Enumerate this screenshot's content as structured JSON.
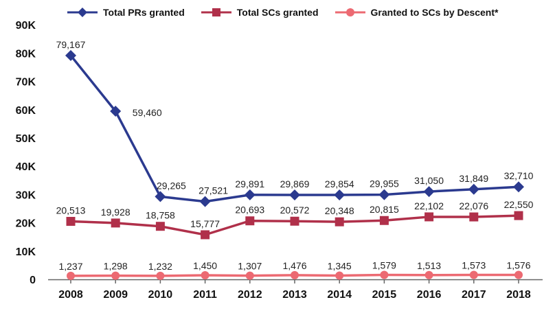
{
  "legend": {
    "pr": "Total PRs granted",
    "sc": "Total SCs granted",
    "descent": "Granted to SCs by Descent*"
  },
  "chart_data": {
    "type": "line",
    "title": "",
    "xlabel": "",
    "ylabel": "",
    "categories": [
      "2008",
      "2009",
      "2010",
      "2011",
      "2012",
      "2013",
      "2014",
      "2015",
      "2016",
      "2017",
      "2018"
    ],
    "ylim": [
      0,
      90000
    ],
    "yticks": [
      0,
      10000,
      20000,
      30000,
      40000,
      50000,
      60000,
      70000,
      80000,
      90000
    ],
    "ytick_labels": [
      "0",
      "10K",
      "20K",
      "30K",
      "40K",
      "50K",
      "60K",
      "70K",
      "80K",
      "90K"
    ],
    "legend_position": "top",
    "grid": false,
    "series": [
      {
        "name": "Total PRs granted",
        "color": "#2b3a8f",
        "marker": "diamond",
        "values": [
          79167,
          59460,
          29265,
          27521,
          29891,
          29869,
          29854,
          29955,
          31050,
          31849,
          32710
        ],
        "labels": [
          "79,167",
          "59,460",
          "29,265",
          "27,521",
          "29,891",
          "29,869",
          "29,854",
          "29,955",
          "31,050",
          "31,849",
          "32,710"
        ]
      },
      {
        "name": "Total SCs granted",
        "color": "#b0304a",
        "marker": "square",
        "values": [
          20513,
          19928,
          18758,
          15777,
          20693,
          20572,
          20348,
          20815,
          22102,
          22076,
          22550
        ],
        "labels": [
          "20,513",
          "19,928",
          "18,758",
          "15,777",
          "20,693",
          "20,572",
          "20,348",
          "20,815",
          "22,102",
          "22,076",
          "22,550"
        ]
      },
      {
        "name": "Granted to SCs by Descent*",
        "color": "#ec6a72",
        "marker": "circle",
        "values": [
          1237,
          1298,
          1232,
          1450,
          1307,
          1476,
          1345,
          1579,
          1513,
          1573,
          1576
        ],
        "labels": [
          "1,237",
          "1,298",
          "1,232",
          "1,450",
          "1,307",
          "1,476",
          "1,345",
          "1,579",
          "1,513",
          "1,573",
          "1,576"
        ]
      }
    ]
  }
}
